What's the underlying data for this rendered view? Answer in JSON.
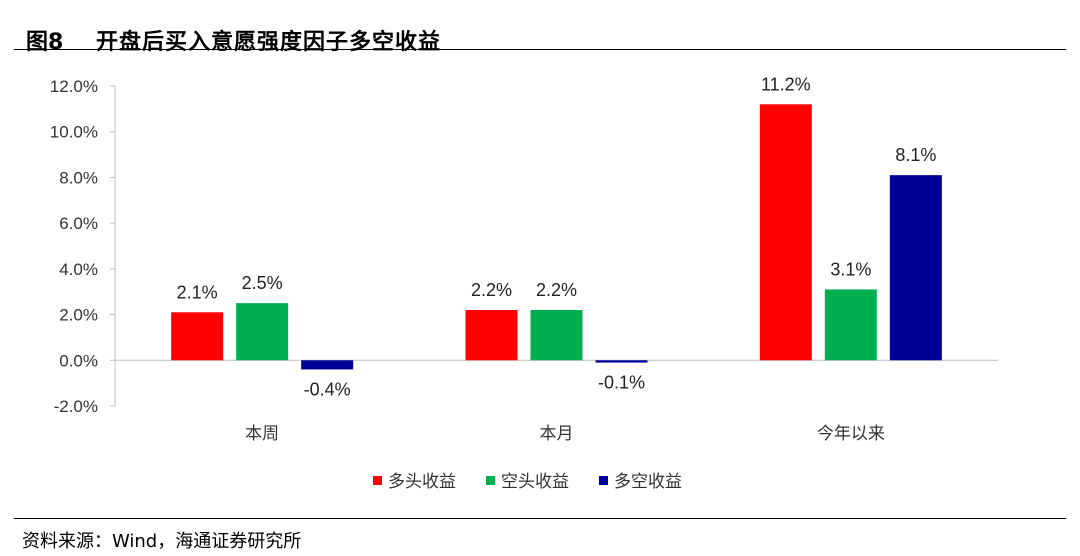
{
  "header": {
    "figure_label": "图8",
    "title": "开盘后买入意愿强度因子多空收益"
  },
  "footer": {
    "source": "资料来源：Wind，海通证券研究所"
  },
  "chart_data": {
    "type": "bar",
    "title": "开盘后买入意愿强度因子多空收益",
    "categories": [
      "本周",
      "本月",
      "今年以来"
    ],
    "series": [
      {
        "name": "多头收益",
        "color": "#FF0000",
        "values": [
          2.1,
          2.2,
          11.2
        ]
      },
      {
        "name": "空头收益",
        "color": "#00B050",
        "values": [
          2.5,
          2.2,
          3.1
        ]
      },
      {
        "name": "多空收益",
        "color": "#000099",
        "values": [
          -0.4,
          -0.1,
          8.1
        ]
      }
    ],
    "ylim": [
      -2.0,
      12.0
    ],
    "yticks": [
      -2.0,
      0.0,
      2.0,
      4.0,
      6.0,
      8.0,
      10.0,
      12.0
    ],
    "tick_format": "percent_1dp",
    "grid": false,
    "legend_position": "bottom-center",
    "xlabel": "",
    "ylabel": ""
  }
}
